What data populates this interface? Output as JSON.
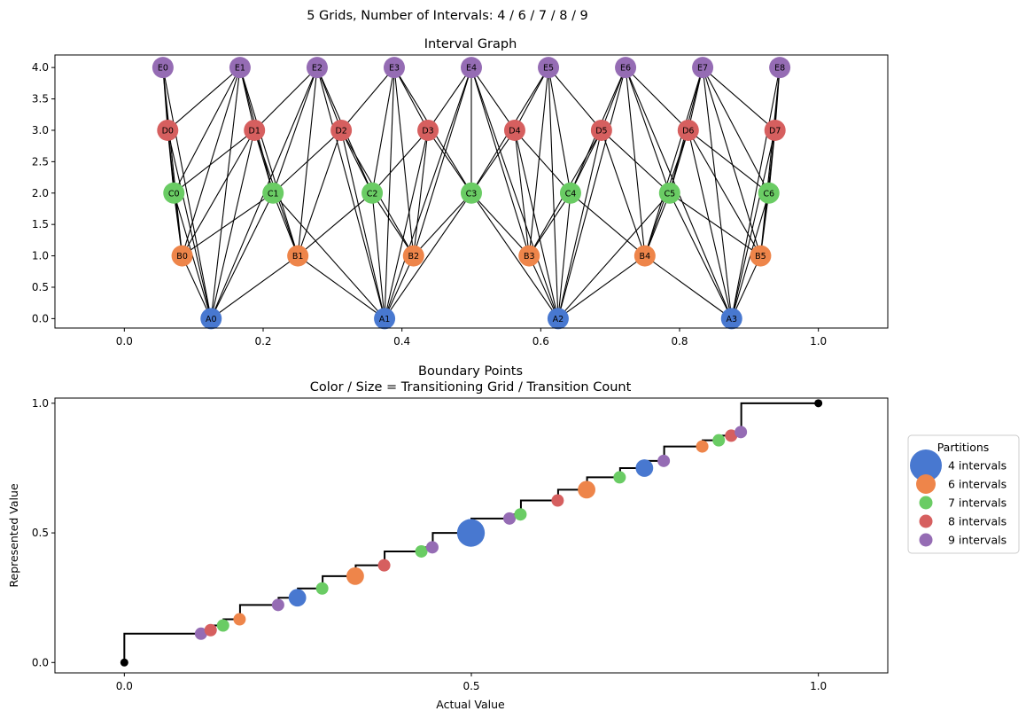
{
  "suptitle": "5 Grids, Number of Intervals: 4 / 6 / 7 / 8 / 9",
  "colors": {
    "A": "#4878d0",
    "B": "#ee854a",
    "C": "#6acc64",
    "D": "#d65f5f",
    "E": "#956cb4",
    "endpoint": "#000000"
  },
  "chart_data": [
    {
      "type": "scatter",
      "title": "Interval Graph",
      "xlim": [
        -0.1,
        1.1
      ],
      "ylim": [
        -0.15,
        4.2
      ],
      "xticks": [
        {
          "value": 0.0,
          "label": "0.0"
        },
        {
          "value": 0.2,
          "label": "0.2"
        },
        {
          "value": 0.4,
          "label": "0.4"
        },
        {
          "value": 0.6,
          "label": "0.6"
        },
        {
          "value": 0.8,
          "label": "0.8"
        },
        {
          "value": 1.0,
          "label": "1.0"
        }
      ],
      "yticks": [
        {
          "value": 0.0,
          "label": "0.0"
        },
        {
          "value": 0.5,
          "label": "0.5"
        },
        {
          "value": 1.0,
          "label": "1.0"
        },
        {
          "value": 1.5,
          "label": "1.5"
        },
        {
          "value": 2.0,
          "label": "2.0"
        },
        {
          "value": 2.5,
          "label": "2.5"
        },
        {
          "value": 3.0,
          "label": "3.0"
        },
        {
          "value": 3.5,
          "label": "3.5"
        },
        {
          "value": 4.0,
          "label": "4.0"
        }
      ],
      "grid": false,
      "nodes": [
        {
          "label": "A0",
          "group": "A",
          "x": 0.125,
          "y": 0
        },
        {
          "label": "A1",
          "group": "A",
          "x": 0.375,
          "y": 0
        },
        {
          "label": "A2",
          "group": "A",
          "x": 0.625,
          "y": 0
        },
        {
          "label": "A3",
          "group": "A",
          "x": 0.875,
          "y": 0
        },
        {
          "label": "B0",
          "group": "B",
          "x": 0.0833,
          "y": 1
        },
        {
          "label": "B1",
          "group": "B",
          "x": 0.25,
          "y": 1
        },
        {
          "label": "B2",
          "group": "B",
          "x": 0.4167,
          "y": 1
        },
        {
          "label": "B3",
          "group": "B",
          "x": 0.5833,
          "y": 1
        },
        {
          "label": "B4",
          "group": "B",
          "x": 0.75,
          "y": 1
        },
        {
          "label": "B5",
          "group": "B",
          "x": 0.9167,
          "y": 1
        },
        {
          "label": "C0",
          "group": "C",
          "x": 0.0714,
          "y": 2
        },
        {
          "label": "C1",
          "group": "C",
          "x": 0.2143,
          "y": 2
        },
        {
          "label": "C2",
          "group": "C",
          "x": 0.3571,
          "y": 2
        },
        {
          "label": "C3",
          "group": "C",
          "x": 0.5,
          "y": 2
        },
        {
          "label": "C4",
          "group": "C",
          "x": 0.6429,
          "y": 2
        },
        {
          "label": "C5",
          "group": "C",
          "x": 0.7857,
          "y": 2
        },
        {
          "label": "C6",
          "group": "C",
          "x": 0.9286,
          "y": 2
        },
        {
          "label": "D0",
          "group": "D",
          "x": 0.0625,
          "y": 3
        },
        {
          "label": "D1",
          "group": "D",
          "x": 0.1875,
          "y": 3
        },
        {
          "label": "D2",
          "group": "D",
          "x": 0.3125,
          "y": 3
        },
        {
          "label": "D3",
          "group": "D",
          "x": 0.4375,
          "y": 3
        },
        {
          "label": "D4",
          "group": "D",
          "x": 0.5625,
          "y": 3
        },
        {
          "label": "D5",
          "group": "D",
          "x": 0.6875,
          "y": 3
        },
        {
          "label": "D6",
          "group": "D",
          "x": 0.8125,
          "y": 3
        },
        {
          "label": "D7",
          "group": "D",
          "x": 0.9375,
          "y": 3
        },
        {
          "label": "E0",
          "group": "E",
          "x": 0.0556,
          "y": 4
        },
        {
          "label": "E1",
          "group": "E",
          "x": 0.1667,
          "y": 4
        },
        {
          "label": "E2",
          "group": "E",
          "x": 0.2778,
          "y": 4
        },
        {
          "label": "E3",
          "group": "E",
          "x": 0.3889,
          "y": 4
        },
        {
          "label": "E4",
          "group": "E",
          "x": 0.5,
          "y": 4
        },
        {
          "label": "E5",
          "group": "E",
          "x": 0.6111,
          "y": 4
        },
        {
          "label": "E6",
          "group": "E",
          "x": 0.7222,
          "y": 4
        },
        {
          "label": "E7",
          "group": "E",
          "x": 0.8333,
          "y": 4
        },
        {
          "label": "E8",
          "group": "E",
          "x": 0.9444,
          "y": 4
        }
      ],
      "intervals": {
        "A": 4,
        "B": 6,
        "C": 7,
        "D": 8,
        "E": 9
      }
    },
    {
      "type": "scatter",
      "title": "Boundary Points",
      "subtitle": "Color / Size = Transitioning Grid / Transition Count",
      "xlabel": "Actual Value",
      "ylabel": "Represented Value",
      "xlim": [
        -0.1,
        1.1
      ],
      "ylim": [
        -0.04,
        1.02
      ],
      "xticks": [
        {
          "value": 0.0,
          "label": "0.0"
        },
        {
          "value": 0.5,
          "label": "0.5"
        },
        {
          "value": 1.0,
          "label": "1.0"
        }
      ],
      "yticks": [
        {
          "value": 0.0,
          "label": "0.0"
        },
        {
          "value": 0.5,
          "label": "0.5"
        },
        {
          "value": 1.0,
          "label": "1.0"
        }
      ],
      "grid": false,
      "endpoints": [
        {
          "x": 0.0,
          "y": 0.0
        },
        {
          "x": 1.0,
          "y": 1.0
        }
      ],
      "points": [
        {
          "x": 0.1111,
          "y": 0.1111,
          "series": "9 intervals",
          "count": 1
        },
        {
          "x": 0.125,
          "y": 0.125,
          "series": "8 intervals",
          "count": 1
        },
        {
          "x": 0.1429,
          "y": 0.1429,
          "series": "7 intervals",
          "count": 1
        },
        {
          "x": 0.1667,
          "y": 0.1667,
          "series": "6 intervals",
          "count": 1
        },
        {
          "x": 0.2222,
          "y": 0.2222,
          "series": "9 intervals",
          "count": 1
        },
        {
          "x": 0.25,
          "y": 0.25,
          "series": "4 intervals",
          "count": 2
        },
        {
          "x": 0.2857,
          "y": 0.2857,
          "series": "7 intervals",
          "count": 1
        },
        {
          "x": 0.3333,
          "y": 0.3333,
          "series": "6 intervals",
          "count": 2
        },
        {
          "x": 0.375,
          "y": 0.375,
          "series": "8 intervals",
          "count": 1
        },
        {
          "x": 0.4286,
          "y": 0.4286,
          "series": "7 intervals",
          "count": 1
        },
        {
          "x": 0.4444,
          "y": 0.4444,
          "series": "9 intervals",
          "count": 1
        },
        {
          "x": 0.5,
          "y": 0.5,
          "series": "4 intervals",
          "count": 5
        },
        {
          "x": 0.5556,
          "y": 0.5556,
          "series": "9 intervals",
          "count": 1
        },
        {
          "x": 0.5714,
          "y": 0.5714,
          "series": "7 intervals",
          "count": 1
        },
        {
          "x": 0.625,
          "y": 0.625,
          "series": "8 intervals",
          "count": 1
        },
        {
          "x": 0.6667,
          "y": 0.6667,
          "series": "6 intervals",
          "count": 2
        },
        {
          "x": 0.7143,
          "y": 0.7143,
          "series": "7 intervals",
          "count": 1
        },
        {
          "x": 0.75,
          "y": 0.75,
          "series": "4 intervals",
          "count": 2
        },
        {
          "x": 0.7778,
          "y": 0.7778,
          "series": "9 intervals",
          "count": 1
        },
        {
          "x": 0.8333,
          "y": 0.8333,
          "series": "6 intervals",
          "count": 1
        },
        {
          "x": 0.8571,
          "y": 0.8571,
          "series": "7 intervals",
          "count": 1
        },
        {
          "x": 0.875,
          "y": 0.875,
          "series": "8 intervals",
          "count": 1
        },
        {
          "x": 0.8889,
          "y": 0.8889,
          "series": "9 intervals",
          "count": 1
        }
      ],
      "legend": {
        "title": "Partitions",
        "placement": "right, outside",
        "entries": [
          {
            "label": "4 intervals",
            "group": "A"
          },
          {
            "label": "6 intervals",
            "group": "B"
          },
          {
            "label": "7 intervals",
            "group": "C"
          },
          {
            "label": "8 intervals",
            "group": "D"
          },
          {
            "label": "9 intervals",
            "group": "E"
          }
        ]
      }
    }
  ]
}
